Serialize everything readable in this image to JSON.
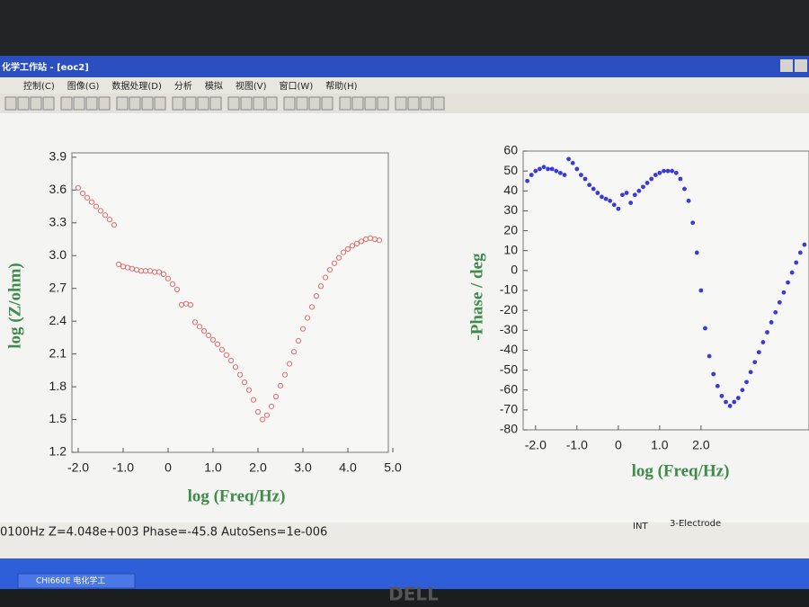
{
  "window": {
    "title": "化学工作站 - [eoc2]"
  },
  "menu": [
    "控制(C)",
    "图像(G)",
    "数据处理(D)",
    "分析",
    "模拟",
    "视图(V)",
    "窗口(W)",
    "帮助(H)"
  ],
  "status_bar": {
    "readout": "0100Hz  Z=4.048e+003  Phase=-45.8  AutoSens=1e-006",
    "mode": "INT",
    "electrode": "3-Electrode"
  },
  "taskbar": {
    "task": "CHI660E 电化学工"
  },
  "bezel_brand": "DELL",
  "chart_data": [
    {
      "type": "scatter",
      "x_label": "log (Freq/Hz)",
      "y_label": "log (Z/ohm)",
      "color": "#e06a6a",
      "marker": "open",
      "x": [
        -2.0,
        -1.9,
        -1.8,
        -1.7,
        -1.6,
        -1.5,
        -1.4,
        -1.3,
        -1.2,
        -1.1,
        -1.0,
        -0.9,
        -0.8,
        -0.7,
        -0.6,
        -0.5,
        -0.4,
        -0.3,
        -0.2,
        -0.1,
        0.0,
        0.1,
        0.2,
        0.3,
        0.4,
        0.5,
        0.6,
        0.7,
        0.8,
        0.9,
        1.0,
        1.1,
        1.2,
        1.3,
        1.4,
        1.5,
        1.6,
        1.7,
        1.8,
        1.9,
        2.0,
        2.1,
        2.2,
        2.3,
        2.4,
        2.5,
        2.6,
        2.7,
        2.8,
        2.9,
        3.0,
        3.1,
        3.2,
        3.3,
        3.4,
        3.5,
        3.6,
        3.7,
        3.8,
        3.9,
        4.0,
        4.1,
        4.2,
        4.3,
        4.4,
        4.5,
        4.6,
        4.7
      ],
      "values": [
        3.62,
        3.57,
        3.53,
        3.49,
        3.45,
        3.41,
        3.37,
        3.33,
        3.28,
        2.92,
        2.9,
        2.89,
        2.88,
        2.87,
        2.86,
        2.86,
        2.86,
        2.85,
        2.85,
        2.83,
        2.79,
        2.74,
        2.69,
        2.55,
        2.56,
        2.55,
        2.39,
        2.35,
        2.31,
        2.27,
        2.23,
        2.19,
        2.14,
        2.09,
        2.04,
        1.98,
        1.91,
        1.84,
        1.77,
        1.68,
        1.57,
        1.5,
        1.54,
        1.62,
        1.71,
        1.81,
        1.91,
        2.01,
        2.12,
        2.22,
        2.33,
        2.43,
        2.53,
        2.63,
        2.72,
        2.8,
        2.87,
        2.93,
        2.98,
        3.03,
        3.06,
        3.09,
        3.11,
        3.13,
        3.15,
        3.16,
        3.15,
        3.14
      ],
      "xlim": [
        -2.14,
        4.9
      ],
      "xticks": [
        {
          "value": -2,
          "label": "-2.0"
        },
        {
          "value": -1,
          "label": "-1.0"
        },
        0,
        {
          "value": 1,
          "label": "1.0"
        },
        {
          "value": 2,
          "label": "2.0"
        },
        {
          "value": 3,
          "label": "3.0"
        },
        {
          "value": 4,
          "label": "4.0"
        },
        {
          "value": 5,
          "label": "5.0"
        }
      ],
      "ylim": [
        1.2,
        3.94
      ],
      "yticks": [
        1.2,
        1.5,
        1.8,
        2.1,
        2.4,
        2.7,
        {
          "value": 3,
          "label": "3.0"
        },
        3.3,
        3.6,
        3.9
      ]
    },
    {
      "type": "scatter",
      "x_label": "log (Freq/Hz)",
      "y_label": "-Phase / deg",
      "color": "#3a3ad6",
      "marker": "filled",
      "x": [
        -2.2,
        -2.1,
        -2.0,
        -1.9,
        -1.8,
        -1.7,
        -1.6,
        -1.5,
        -1.4,
        -1.3,
        -1.2,
        -1.1,
        -1.0,
        -0.9,
        -0.8,
        -0.7,
        -0.6,
        -0.5,
        -0.4,
        -0.3,
        -0.2,
        -0.1,
        0.0,
        0.1,
        0.2,
        0.3,
        0.4,
        0.5,
        0.6,
        0.7,
        0.8,
        0.9,
        1.0,
        1.1,
        1.2,
        1.3,
        1.4,
        1.5,
        1.6,
        1.7,
        1.8,
        1.9,
        2.0,
        2.1,
        2.2,
        2.3,
        2.4,
        2.5,
        2.6,
        2.7,
        2.8,
        2.9,
        3.0,
        3.1,
        3.2,
        3.3,
        3.4,
        3.5,
        3.6,
        3.7,
        3.8,
        3.9,
        4.0,
        4.1,
        4.2,
        4.3,
        4.4,
        4.5
      ],
      "values": [
        45,
        48,
        50,
        51,
        52,
        51,
        51,
        50,
        49,
        48,
        56,
        54,
        51,
        48,
        46,
        43,
        41,
        39,
        37,
        36,
        35,
        33,
        31,
        38,
        39,
        34,
        38,
        40,
        42,
        44,
        46,
        48,
        49,
        50,
        50,
        50,
        49,
        46,
        41,
        35,
        24,
        9,
        -10,
        -29,
        -43,
        -52,
        -58,
        -63,
        -66,
        -68,
        -66,
        -64,
        -60,
        -56,
        -51,
        -46,
        -41,
        -36,
        -31,
        -26,
        -21,
        -16,
        -11,
        -6,
        -1,
        4,
        9,
        13
      ],
      "xlim": [
        -2.3,
        4.61
      ],
      "xticks": [
        {
          "value": -2,
          "label": "-2.0"
        },
        {
          "value": -1,
          "label": "-1.0"
        },
        0,
        {
          "value": 1,
          "label": "1.0"
        },
        {
          "value": 2,
          "label": "2.0"
        }
      ],
      "ylim": [
        -80,
        60
      ],
      "yticks": [
        -80,
        -70,
        -60,
        -50,
        -40,
        -30,
        -20,
        -10,
        0,
        10,
        20,
        30,
        40,
        50,
        60
      ]
    }
  ]
}
